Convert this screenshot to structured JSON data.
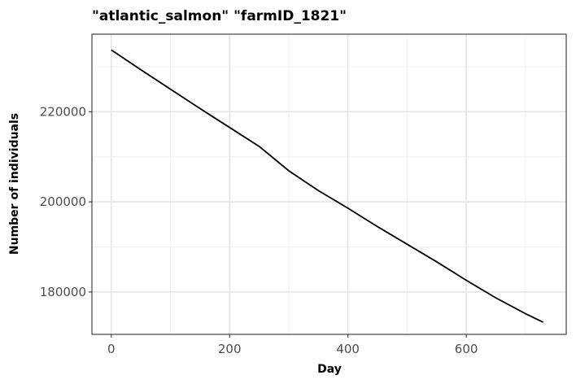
{
  "chart_data": {
    "type": "line",
    "title": "\"atlantic_salmon\" \"farmID_1821\"",
    "xlabel": "Day",
    "ylabel": "Number of individuals",
    "xlim": [
      -32.7,
      769
    ],
    "ylim": [
      170600,
      237200
    ],
    "x_ticks": [
      0,
      200,
      400,
      600
    ],
    "x_minor_ticks": [
      100,
      300,
      500,
      700
    ],
    "y_ticks": [
      180000,
      200000,
      220000
    ],
    "y_minor_ticks": [
      170000,
      190000,
      210000,
      230000
    ],
    "grid": true,
    "legend": "none",
    "line_color": "#000000",
    "series": [
      {
        "x": [
          0,
          50,
          100,
          150,
          200,
          250,
          300,
          350,
          400,
          450,
          500,
          550,
          600,
          650,
          700,
          730
        ],
        "values": [
          233700,
          229300,
          225000,
          220700,
          216500,
          212300,
          206900,
          202500,
          198600,
          194500,
          190600,
          186700,
          182600,
          178700,
          175200,
          173300
        ]
      }
    ]
  }
}
